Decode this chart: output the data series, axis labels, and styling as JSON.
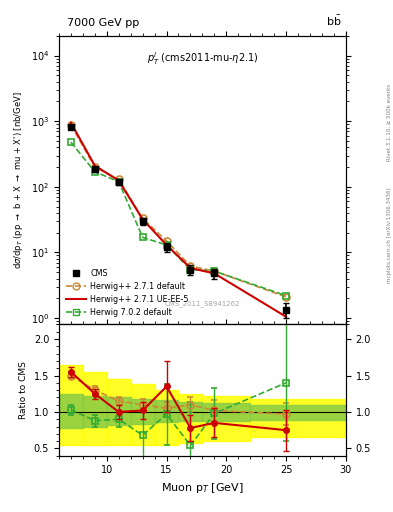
{
  "title_top": "7000 GeV pp",
  "title_right": "b$\\bar{b}$",
  "annotation": "$p_T^l$ (cms2011-mu-$\\eta$2.1)",
  "watermark": "CMS_2011_S8941262",
  "right_label": "Rivet 3.1.10, ≥ 500k events",
  "right_label2": "mcplots.cern.ch [arXiv:1306.3436]",
  "ylabel_main": "d$\\sigma$/dp$_T$ (pp $\\rightarrow$ b + X $\\rightarrow$ mu + X') [nb/GeV]",
  "ylabel_ratio": "Ratio to CMS",
  "xlabel": "Muon p$_T$ [GeV]",
  "xlim": [
    6,
    30
  ],
  "ylim_main": [
    0.8,
    20000
  ],
  "ylim_ratio": [
    0.4,
    2.2
  ],
  "cms_x": [
    7,
    9,
    11,
    13,
    15,
    17,
    19,
    25
  ],
  "cms_y": [
    820,
    185,
    120,
    30,
    12,
    5.5,
    4.8,
    1.35
  ],
  "cms_yerr": [
    70,
    18,
    12,
    4,
    2,
    1.0,
    0.9,
    0.35
  ],
  "hw271d_x": [
    7,
    9,
    11,
    13,
    15,
    17,
    19,
    25
  ],
  "hw271d_y": [
    880,
    200,
    130,
    33,
    15,
    6.2,
    5.2,
    2.1
  ],
  "hw271d_color": "#cc8833",
  "hw271ue_x": [
    7,
    9,
    11,
    13,
    15,
    17,
    19,
    25
  ],
  "hw271ue_y": [
    950,
    210,
    125,
    32,
    13,
    5.8,
    4.8,
    1.05
  ],
  "hw271ue_color": "#cc0000",
  "hw702d_x": [
    7,
    9,
    11,
    13,
    15,
    17,
    19,
    25
  ],
  "hw702d_y": [
    480,
    170,
    120,
    17,
    13,
    5.5,
    5.2,
    2.2
  ],
  "hw702d_color": "#33aa33",
  "ratio_hw271d_y": [
    1.5,
    1.3,
    1.15,
    1.1,
    1.05,
    1.1,
    1.02,
    0.97
  ],
  "ratio_hw271ue_y": [
    1.55,
    1.25,
    1.0,
    1.02,
    1.35,
    0.78,
    0.85,
    0.75
  ],
  "ratio_hw702d_y": [
    1.03,
    0.88,
    0.9,
    0.68,
    0.97,
    0.54,
    0.98,
    1.4
  ],
  "ratio_hw271d_yerr": [
    0.05,
    0.05,
    0.05,
    0.08,
    0.08,
    0.1,
    0.15,
    0.15
  ],
  "ratio_hw271ue_yerr": [
    0.07,
    0.07,
    0.1,
    0.12,
    0.35,
    0.18,
    0.2,
    0.28
  ],
  "ratio_hw702d_yerr": [
    0.07,
    0.08,
    0.1,
    0.35,
    0.42,
    0.6,
    0.35,
    0.8
  ],
  "bx_edges": [
    6,
    8,
    10,
    12,
    14,
    16,
    18,
    22,
    30
  ],
  "yellow_lo": [
    0.55,
    0.55,
    0.55,
    0.55,
    0.55,
    0.58,
    0.6,
    0.65
  ],
  "yellow_hi": [
    1.65,
    1.55,
    1.45,
    1.38,
    1.3,
    1.25,
    1.22,
    1.18
  ],
  "green_lo": [
    0.78,
    0.8,
    0.82,
    0.84,
    0.86,
    0.87,
    0.88,
    0.89
  ],
  "green_hi": [
    1.25,
    1.22,
    1.2,
    1.18,
    1.16,
    1.14,
    1.12,
    1.1
  ]
}
